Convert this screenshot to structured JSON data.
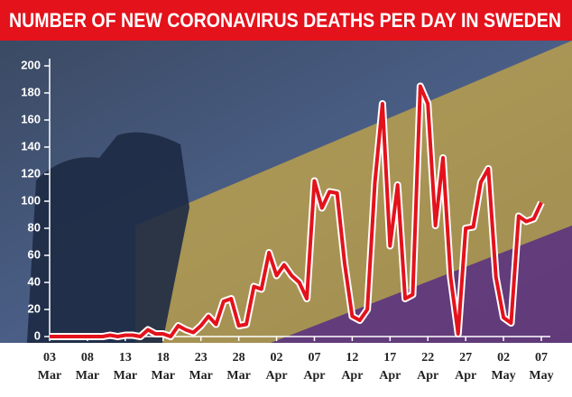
{
  "chart_data": {
    "type": "line",
    "title": "NUMBER OF NEW CORONAVIRUS DEATHS PER DAY IN SWEDEN",
    "categories": [
      "03 Mar",
      null,
      null,
      null,
      null,
      "08 Mar",
      null,
      null,
      null,
      null,
      "13 Mar",
      null,
      null,
      null,
      null,
      "18 Mar",
      null,
      null,
      null,
      null,
      "23 Mar",
      null,
      null,
      null,
      null,
      "28 Mar",
      null,
      null,
      null,
      null,
      "02 Apr",
      null,
      null,
      null,
      null,
      "07 Apr",
      null,
      null,
      null,
      null,
      "12 Apr",
      null,
      null,
      null,
      null,
      "17 Apr",
      null,
      null,
      null,
      null,
      "22 Apr",
      null,
      null,
      null,
      null,
      "27 Apr",
      null,
      null,
      null,
      null,
      "02 May",
      null,
      null,
      null,
      null,
      "07 May"
    ],
    "values": [
      0,
      0,
      0,
      0,
      0,
      0,
      0,
      0,
      1,
      0,
      1,
      1,
      0,
      5,
      2,
      2,
      0,
      8,
      5,
      3,
      8,
      15,
      9,
      26,
      28,
      8,
      9,
      37,
      35,
      62,
      45,
      53,
      45,
      40,
      28,
      115,
      95,
      107,
      106,
      54,
      15,
      12,
      20,
      114,
      172,
      67,
      112,
      28,
      31,
      185,
      172,
      82,
      132,
      44,
      2,
      80,
      81,
      114,
      124,
      44,
      14,
      10,
      89,
      85,
      87,
      99
    ],
    "color": "#e3121b",
    "ylim": [
      0,
      200
    ],
    "yticks": [
      0,
      20,
      40,
      60,
      80,
      100,
      120,
      140,
      160,
      180,
      200
    ]
  }
}
